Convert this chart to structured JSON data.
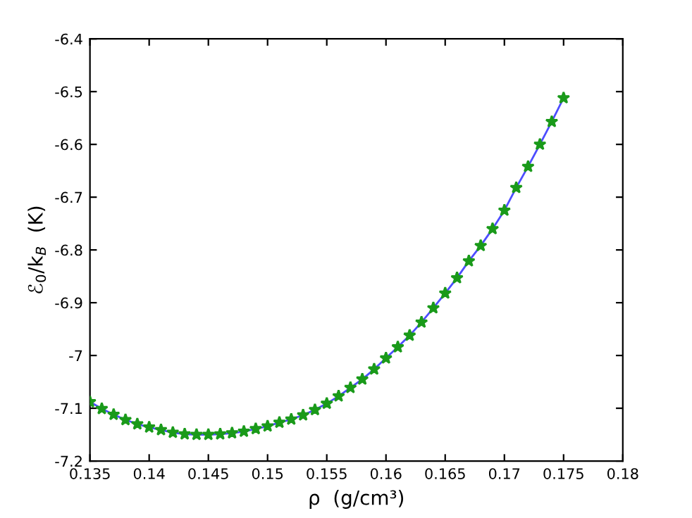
{
  "chart_data": {
    "type": "line",
    "xlabel": "ρ  (g/cm³)",
    "ylabel": "ℰ$_{0}$/k$_{B}$  (K)",
    "xlim": [
      0.135,
      0.18
    ],
    "xticks": [
      0.135,
      0.14,
      0.145,
      0.15,
      0.155,
      0.16,
      0.165,
      0.17,
      0.175,
      0.18
    ],
    "ylim": [
      -7.2,
      -6.4
    ],
    "yticks": [
      -7.2,
      -7.1,
      -7,
      -6.9,
      -6.8,
      -6.7,
      -6.6,
      -6.5,
      -6.4
    ],
    "grid": false,
    "legend": false,
    "series": [
      {
        "color": "#4d4dff",
        "line_style": "solid",
        "marker": "none",
        "x": [
          0.135,
          0.136,
          0.137,
          0.138,
          0.139,
          0.14,
          0.141,
          0.142,
          0.143,
          0.144,
          0.145,
          0.146,
          0.147,
          0.148,
          0.149,
          0.15,
          0.151,
          0.152,
          0.153,
          0.154,
          0.155,
          0.156,
          0.157,
          0.158,
          0.159,
          0.16,
          0.161,
          0.162,
          0.163,
          0.164,
          0.165,
          0.166,
          0.167,
          0.168,
          0.169,
          0.17,
          0.171,
          0.172,
          0.173,
          0.174,
          0.175
        ],
        "values": [
          -7.088,
          -7.101,
          -7.112,
          -7.122,
          -7.13,
          -7.136,
          -7.141,
          -7.146,
          -7.149,
          -7.15,
          -7.15,
          -7.149,
          -7.147,
          -7.144,
          -7.139,
          -7.134,
          -7.127,
          -7.121,
          -7.113,
          -7.103,
          -7.091,
          -7.077,
          -7.061,
          -7.045,
          -7.026,
          -7.005,
          -6.984,
          -6.962,
          -6.937,
          -6.91,
          -6.882,
          -6.853,
          -6.821,
          -6.792,
          -6.76,
          -6.725,
          -6.682,
          -6.642,
          -6.6,
          -6.557,
          -6.512
        ]
      },
      {
        "type": "scatter",
        "color": "#1a9a1a",
        "marker": "star",
        "x": [
          0.135,
          0.136,
          0.137,
          0.138,
          0.139,
          0.14,
          0.141,
          0.142,
          0.143,
          0.144,
          0.145,
          0.146,
          0.147,
          0.148,
          0.149,
          0.15,
          0.151,
          0.152,
          0.153,
          0.154,
          0.155,
          0.156,
          0.157,
          0.158,
          0.159,
          0.16,
          0.161,
          0.162,
          0.163,
          0.164,
          0.165,
          0.166,
          0.167,
          0.168,
          0.169,
          0.17,
          0.171,
          0.172,
          0.173,
          0.174,
          0.175
        ],
        "values": [
          -7.088,
          -7.101,
          -7.112,
          -7.122,
          -7.13,
          -7.136,
          -7.141,
          -7.146,
          -7.149,
          -7.15,
          -7.15,
          -7.149,
          -7.147,
          -7.144,
          -7.139,
          -7.134,
          -7.127,
          -7.121,
          -7.113,
          -7.103,
          -7.091,
          -7.077,
          -7.061,
          -7.045,
          -7.026,
          -7.005,
          -6.984,
          -6.962,
          -6.937,
          -6.91,
          -6.882,
          -6.853,
          -6.821,
          -6.792,
          -6.76,
          -6.725,
          -6.682,
          -6.642,
          -6.6,
          -6.557,
          -6.512
        ]
      }
    ]
  }
}
